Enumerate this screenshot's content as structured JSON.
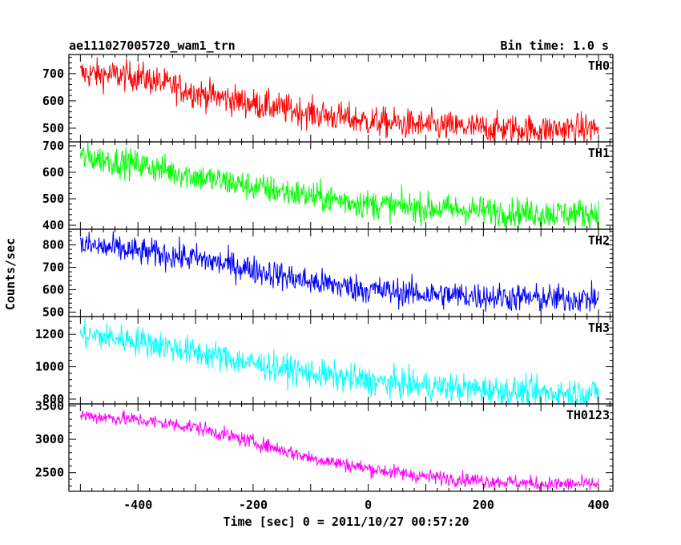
{
  "chart_data": {
    "type": "line",
    "title": "ae111027005720_wam1_trn",
    "subtitle": "Bin time: 1.0 s",
    "xlabel": "Time [sec] 0 = 2011/10/27 00:57:20",
    "ylabel": "Counts/sec",
    "xlim": [
      -520,
      425
    ],
    "x_ticks": [
      -400,
      -200,
      0,
      200,
      400
    ],
    "bin_time": 1.0,
    "panels": [
      {
        "name": "TH0",
        "color": "#ff0000",
        "ylim": [
          450,
          770
        ],
        "yticks": [
          500,
          600,
          700
        ],
        "trend": {
          "x": [
            -500,
            -400,
            -300,
            -200,
            -100,
            0,
            100,
            200,
            300,
            400
          ],
          "y": [
            700,
            690,
            630,
            590,
            555,
            525,
            510,
            500,
            495,
            500
          ]
        },
        "noise": 28
      },
      {
        "name": "TH1",
        "color": "#00ff00",
        "ylim": [
          385,
          715
        ],
        "yticks": [
          400,
          500,
          600,
          700
        ],
        "trend": {
          "x": [
            -500,
            -400,
            -300,
            -200,
            -100,
            0,
            100,
            200,
            300,
            400
          ],
          "y": [
            660,
            630,
            585,
            545,
            510,
            480,
            465,
            455,
            445,
            445
          ]
        },
        "noise": 28
      },
      {
        "name": "TH2",
        "color": "#0000ff",
        "ylim": [
          480,
          870
        ],
        "yticks": [
          500,
          600,
          700,
          800
        ],
        "trend": {
          "x": [
            -500,
            -400,
            -300,
            -200,
            -100,
            0,
            100,
            200,
            300,
            400
          ],
          "y": [
            800,
            770,
            740,
            690,
            635,
            600,
            580,
            570,
            560,
            560
          ]
        },
        "noise": 32
      },
      {
        "name": "TH3",
        "color": "#00ffff",
        "ylim": [
          770,
          1310
        ],
        "yticks": [
          800,
          1000,
          1200
        ],
        "trend": {
          "x": [
            -500,
            -400,
            -300,
            -200,
            -100,
            0,
            100,
            200,
            300,
            400
          ],
          "y": [
            1200,
            1160,
            1090,
            1020,
            960,
            910,
            880,
            860,
            840,
            840
          ]
        },
        "noise": 45
      },
      {
        "name": "TH0123",
        "color": "#ff00ff",
        "ylim": [
          2220,
          3530
        ],
        "yticks": [
          2500,
          3000,
          3500
        ],
        "trend": {
          "x": [
            -500,
            -400,
            -300,
            -200,
            -100,
            0,
            100,
            200,
            300,
            400
          ],
          "y": [
            3360,
            3290,
            3180,
            2960,
            2720,
            2560,
            2440,
            2380,
            2330,
            2330
          ]
        },
        "noise": 55
      }
    ]
  }
}
